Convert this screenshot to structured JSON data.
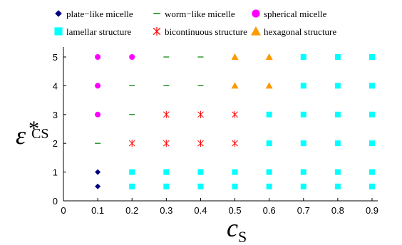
{
  "chart_data": {
    "type": "scatter",
    "xlabel": "c",
    "xlabel_sub": "S",
    "ylabel": "ε",
    "ylabel_sup": "*",
    "ylabel_sub": "CS",
    "xlim": [
      0,
      0.9
    ],
    "ylim": [
      0,
      5
    ],
    "xticks": [
      "0",
      "0.1",
      "0.2",
      "0.3",
      "0.4",
      "0.5",
      "0.6",
      "0.7",
      "0.8",
      "0.9"
    ],
    "yticks": [
      "0",
      "1",
      "2",
      "3",
      "4",
      "5"
    ],
    "grid": false,
    "legend_position": "top",
    "series": [
      {
        "name": "plate−like micelle",
        "marker": "diamond",
        "color": "#000080",
        "points": [
          [
            0.1,
            0.5
          ],
          [
            0.1,
            1
          ]
        ]
      },
      {
        "name": "worm−like micelle",
        "marker": "dash",
        "color": "#008000",
        "points": [
          [
            0.1,
            2
          ],
          [
            0.2,
            3
          ],
          [
            0.2,
            4
          ],
          [
            0.3,
            4
          ],
          [
            0.4,
            4
          ],
          [
            0.3,
            5
          ],
          [
            0.4,
            5
          ]
        ]
      },
      {
        "name": "spherical micelle",
        "marker": "circle",
        "color": "#ff00ff",
        "points": [
          [
            0.1,
            3
          ],
          [
            0.1,
            4
          ],
          [
            0.1,
            5
          ],
          [
            0.2,
            5
          ]
        ]
      },
      {
        "name": "lamellar structure",
        "marker": "square",
        "color": "#00ffff",
        "points": [
          [
            0.2,
            0.5
          ],
          [
            0.3,
            0.5
          ],
          [
            0.4,
            0.5
          ],
          [
            0.5,
            0.5
          ],
          [
            0.6,
            0.5
          ],
          [
            0.7,
            0.5
          ],
          [
            0.8,
            0.5
          ],
          [
            0.9,
            0.5
          ],
          [
            0.2,
            1
          ],
          [
            0.3,
            1
          ],
          [
            0.4,
            1
          ],
          [
            0.5,
            1
          ],
          [
            0.6,
            1
          ],
          [
            0.7,
            1
          ],
          [
            0.8,
            1
          ],
          [
            0.9,
            1
          ],
          [
            0.6,
            2
          ],
          [
            0.7,
            2
          ],
          [
            0.8,
            2
          ],
          [
            0.9,
            2
          ],
          [
            0.6,
            3
          ],
          [
            0.7,
            3
          ],
          [
            0.8,
            3
          ],
          [
            0.9,
            3
          ],
          [
            0.7,
            4
          ],
          [
            0.8,
            4
          ],
          [
            0.9,
            4
          ],
          [
            0.7,
            5
          ],
          [
            0.8,
            5
          ],
          [
            0.9,
            5
          ]
        ]
      },
      {
        "name": "bicontinuous structure",
        "marker": "asterisk",
        "color": "#ff0000",
        "points": [
          [
            0.2,
            2
          ],
          [
            0.3,
            2
          ],
          [
            0.4,
            2
          ],
          [
            0.5,
            2
          ],
          [
            0.3,
            3
          ],
          [
            0.4,
            3
          ],
          [
            0.5,
            3
          ]
        ]
      },
      {
        "name": "hexagonal structure",
        "marker": "triangle",
        "color": "#ff9900",
        "points": [
          [
            0.5,
            4
          ],
          [
            0.6,
            4
          ],
          [
            0.5,
            5
          ],
          [
            0.6,
            5
          ]
        ]
      }
    ]
  }
}
